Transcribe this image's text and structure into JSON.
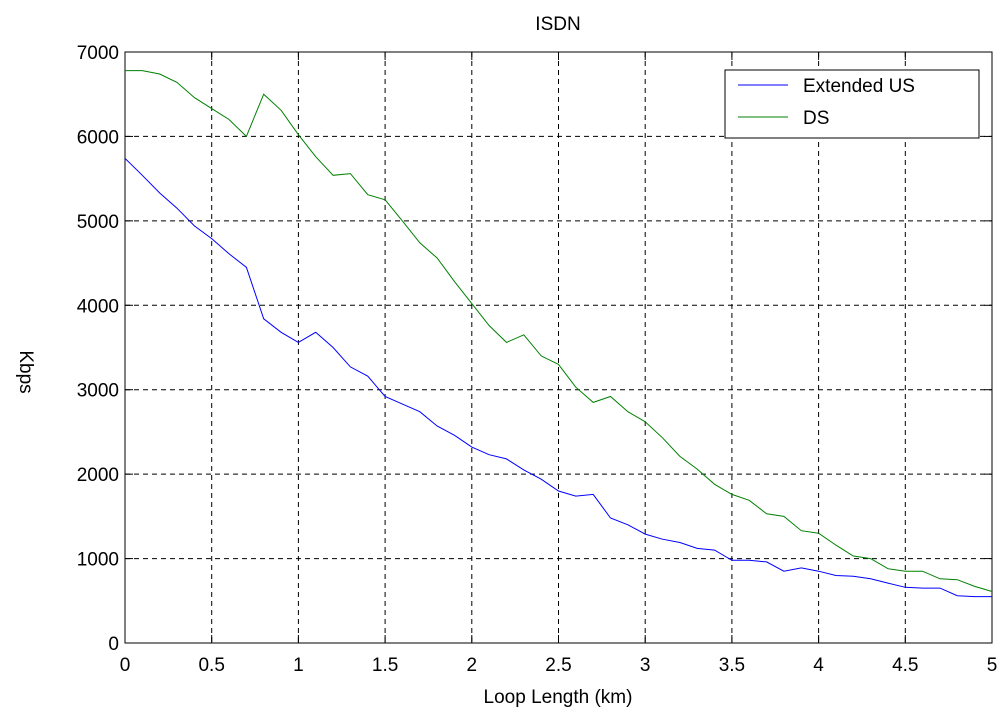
{
  "chart_data": {
    "type": "line",
    "title": "ISDN",
    "xlabel": "Loop Length (km)",
    "ylabel": "Kbps",
    "xlim": [
      0,
      5
    ],
    "ylim": [
      0,
      7000
    ],
    "xticks": [
      "0",
      "0.5",
      "1",
      "1.5",
      "2",
      "2.5",
      "3",
      "3.5",
      "4",
      "4.5",
      "5"
    ],
    "yticks": [
      "0",
      "1000",
      "2000",
      "3000",
      "4000",
      "5000",
      "6000",
      "7000"
    ],
    "grid": true,
    "legend_position": "top-right",
    "x": [
      0,
      0.1,
      0.2,
      0.3,
      0.4,
      0.5,
      0.6,
      0.7,
      0.8,
      0.9,
      1.0,
      1.1,
      1.2,
      1.3,
      1.4,
      1.5,
      1.6,
      1.7,
      1.8,
      1.9,
      2.0,
      2.1,
      2.2,
      2.3,
      2.4,
      2.5,
      2.6,
      2.7,
      2.8,
      2.9,
      3.0,
      3.1,
      3.2,
      3.3,
      3.4,
      3.5,
      3.6,
      3.7,
      3.8,
      3.9,
      4.0,
      4.1,
      4.2,
      4.3,
      4.4,
      4.5,
      4.6,
      4.7,
      4.8,
      4.9,
      5.0
    ],
    "series": [
      {
        "name": "Extended US",
        "color": "#0000ff",
        "values": [
          5740,
          5540,
          5330,
          5150,
          4940,
          4790,
          4610,
          4450,
          3840,
          3680,
          3560,
          3680,
          3500,
          3270,
          3160,
          2920,
          2830,
          2740,
          2570,
          2460,
          2320,
          2230,
          2180,
          2050,
          1940,
          1800,
          1740,
          1760,
          1480,
          1400,
          1290,
          1230,
          1190,
          1120,
          1100,
          980,
          980,
          960,
          850,
          890,
          850,
          800,
          790,
          760,
          710,
          660,
          650,
          650,
          560,
          550,
          550
        ]
      },
      {
        "name": "DS",
        "color": "#008000",
        "values": [
          6780,
          6780,
          6740,
          6640,
          6460,
          6330,
          6200,
          6000,
          6500,
          6310,
          6020,
          5760,
          5540,
          5560,
          5310,
          5250,
          5000,
          4740,
          4560,
          4280,
          4020,
          3760,
          3560,
          3650,
          3400,
          3300,
          3030,
          2850,
          2920,
          2740,
          2620,
          2430,
          2210,
          2060,
          1880,
          1760,
          1690,
          1530,
          1500,
          1330,
          1300,
          1160,
          1030,
          1000,
          880,
          850,
          850,
          760,
          750,
          670,
          610
        ]
      }
    ]
  }
}
